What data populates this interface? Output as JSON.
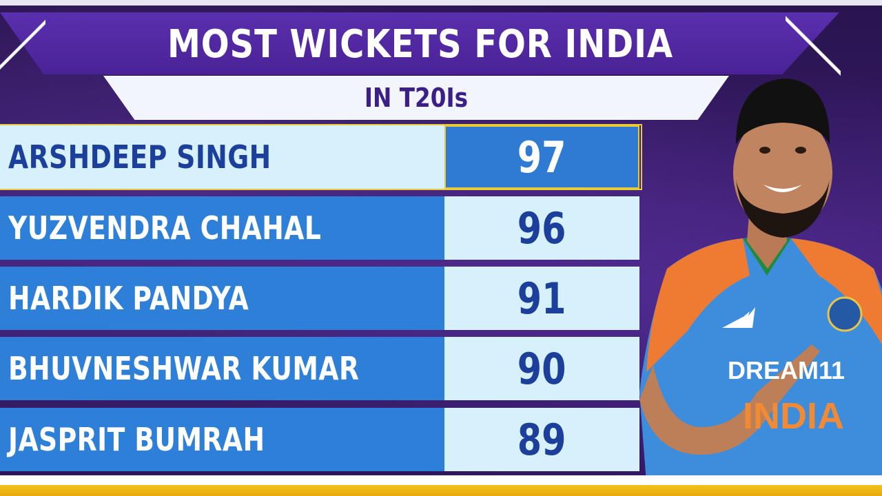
{
  "header": {
    "title": "MOST WICKETS FOR INDIA",
    "subtitle": "IN T20Is"
  },
  "rows": [
    {
      "name": "ARSHDEEP SINGH",
      "wickets": "97"
    },
    {
      "name": "YUZVENDRA CHAHAL",
      "wickets": "96"
    },
    {
      "name": "HARDIK PANDYA",
      "wickets": "91"
    },
    {
      "name": "BHUVNESHWAR KUMAR",
      "wickets": "90"
    },
    {
      "name": "JASPRIT BUMRAH",
      "wickets": "89"
    }
  ],
  "player": {
    "jersey_sponsor": "DREAM11",
    "jersey_text": "INDIA"
  },
  "colors": {
    "purple": "#4a2296",
    "blue": "#2e7fd7",
    "light_blue": "#d6f1fb",
    "navy_text": "#1b3f9a",
    "gold": "#e7c93a",
    "orange": "#f07a2e"
  }
}
